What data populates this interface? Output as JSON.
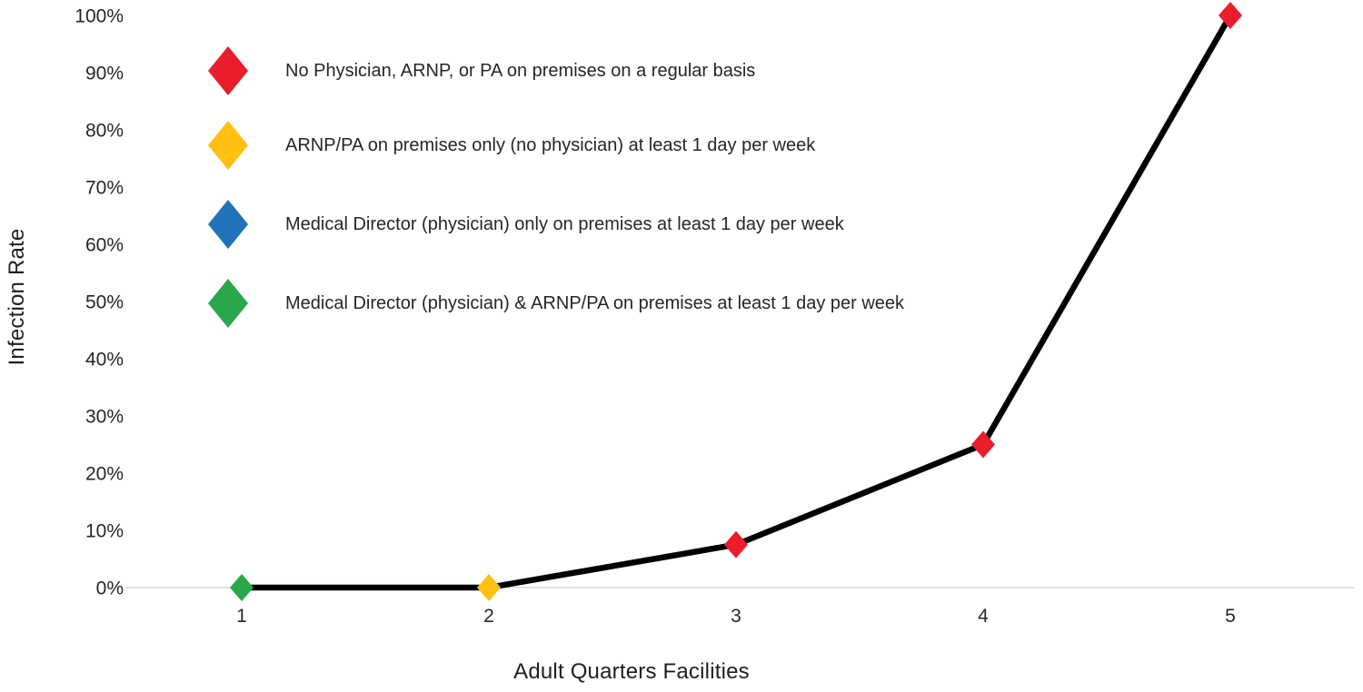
{
  "page": {
    "background": "#FFFFFF"
  },
  "chart_data": {
    "type": "line",
    "title": "",
    "xlabel": "Adult Quarters Facilities",
    "ylabel": "Infection Rate",
    "categories": [
      "1",
      "2",
      "3",
      "4",
      "5"
    ],
    "values": [
      0,
      0,
      7.5,
      25,
      100
    ],
    "point_colors": [
      "#28A84B",
      "#FFC011",
      "#E91D2C",
      "#E91D2C",
      "#E91D2C"
    ],
    "line_color": "#000000",
    "marker": "diamond",
    "ylim": [
      0,
      100
    ],
    "yticks": [
      0,
      10,
      20,
      30,
      40,
      50,
      60,
      70,
      80,
      90,
      100
    ],
    "ytick_labels": [
      "0%",
      "10%",
      "20%",
      "30%",
      "40%",
      "50%",
      "60%",
      "70%",
      "80%",
      "90%",
      "100%"
    ],
    "grid": "baseline only",
    "gridline_color": "#D9D9D9",
    "legend_position": "upper-left",
    "legend": [
      {
        "icon": "diamond-icon",
        "color": "#E91D2C",
        "label": "No Physician, ARNP, or PA on premises on a regular basis"
      },
      {
        "icon": "diamond-icon",
        "color": "#FFC011",
        "label": "ARNP/PA on premises only (no physician) at least 1 day per week"
      },
      {
        "icon": "diamond-icon",
        "color": "#2173B9",
        "label": "Medical Director (physician) only on premises at least 1 day per week"
      },
      {
        "icon": "diamond-icon",
        "color": "#28A84B",
        "label": "Medical Director (physician) & ARNP/PA on premises at least 1 day per week"
      }
    ]
  }
}
